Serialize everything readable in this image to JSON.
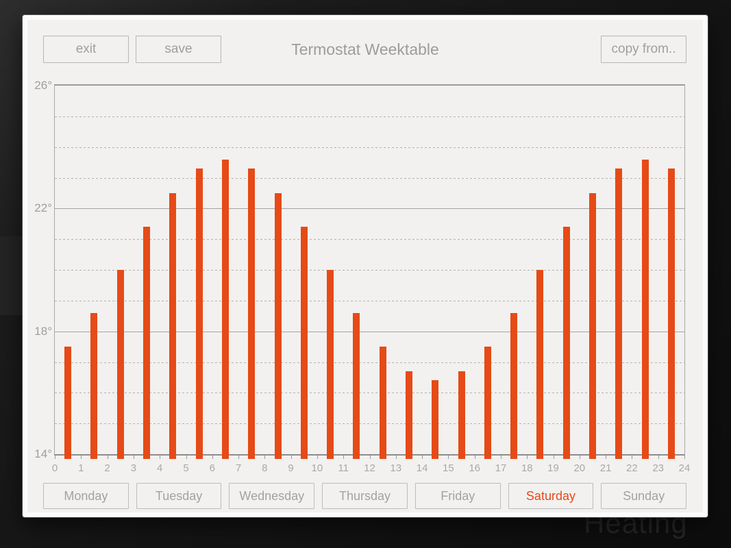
{
  "dialog": {
    "title": "Termostat Weektable",
    "toolbar": {
      "exit_label": "exit",
      "save_label": "save",
      "copy_from_label": "copy from.."
    }
  },
  "background": {
    "watermark_text": "Heating"
  },
  "days": [
    {
      "label": "Monday",
      "selected": false
    },
    {
      "label": "Tuesday",
      "selected": false
    },
    {
      "label": "Wednesday",
      "selected": false
    },
    {
      "label": "Thursday",
      "selected": false
    },
    {
      "label": "Friday",
      "selected": false
    },
    {
      "label": "Saturday",
      "selected": true
    },
    {
      "label": "Sunday",
      "selected": false
    }
  ],
  "chart_data": {
    "type": "bar",
    "title": "Termostat Weektable",
    "x": [
      0,
      1,
      2,
      3,
      4,
      5,
      6,
      7,
      8,
      9,
      10,
      11,
      12,
      13,
      14,
      15,
      16,
      17,
      18,
      19,
      20,
      21,
      22,
      23
    ],
    "values": [
      17.5,
      18.6,
      20.0,
      21.4,
      22.5,
      23.3,
      23.6,
      23.3,
      22.5,
      21.4,
      20.0,
      18.6,
      17.5,
      16.7,
      16.4,
      16.7,
      17.5,
      18.6,
      20.0,
      21.4,
      22.5,
      23.3,
      23.6,
      23.3
    ],
    "ylim": [
      14,
      26
    ],
    "ytick_values": [
      26,
      22,
      18,
      14
    ],
    "ytick_labels": [
      "26°",
      "22°",
      "18°",
      "14°"
    ],
    "xtick_labels": [
      0,
      1,
      2,
      3,
      4,
      5,
      6,
      7,
      8,
      9,
      10,
      11,
      12,
      13,
      14,
      15,
      16,
      17,
      18,
      19,
      20,
      21,
      22,
      23,
      24
    ],
    "grid": "dashed horizontal line every 1 degree, solid lines at 18 and 22, borders at 14 and 26",
    "legend": "none",
    "bar_color": "#e64a17"
  },
  "colors": {
    "bar": "#e64a17",
    "selected_day_text": "#e8481b",
    "muted_text": "#a0a0a0",
    "dialog_bg": "#f2f1ef",
    "page_bg": "#151515"
  }
}
